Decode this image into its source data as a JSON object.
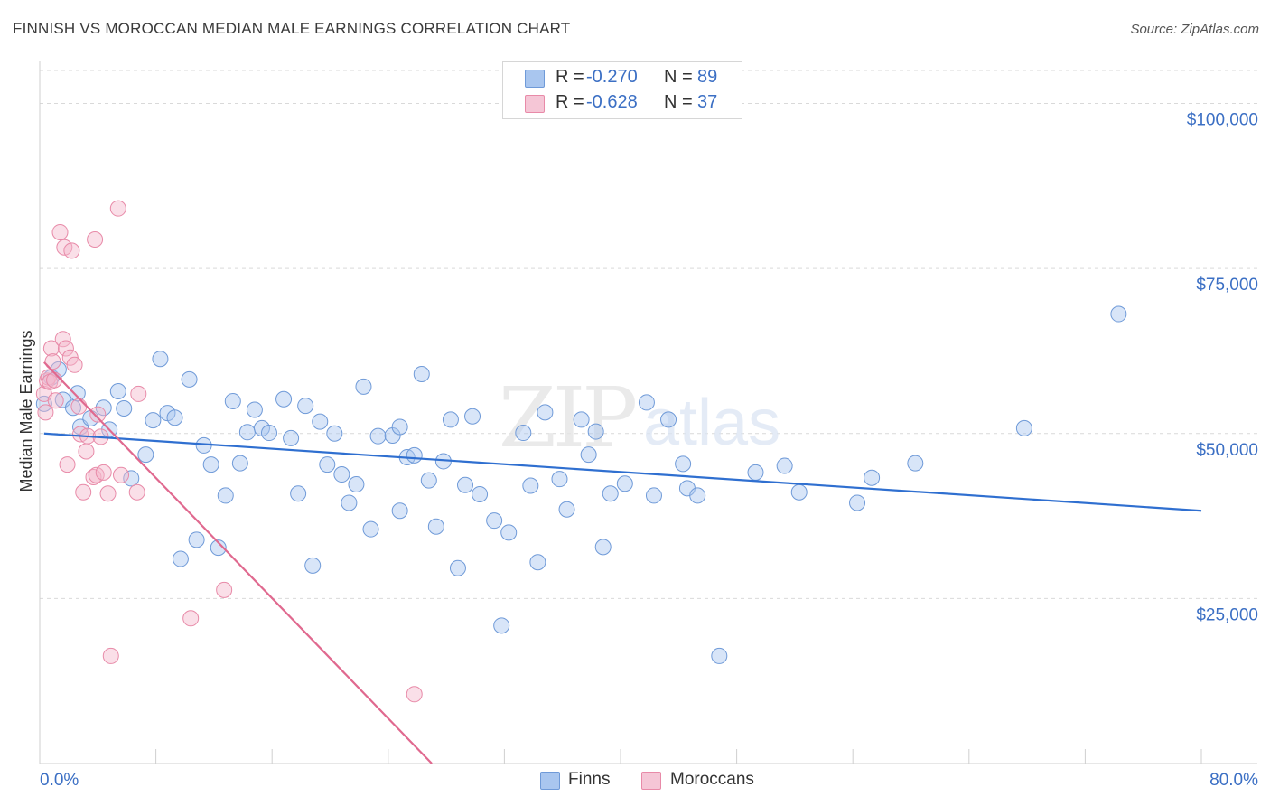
{
  "title": "FINNISH VS MOROCCAN MEDIAN MALE EARNINGS CORRELATION CHART",
  "source": "Source: ZipAtlas.com",
  "watermark": {
    "zip": "ZIP",
    "atlas": "atlas"
  },
  "colors": {
    "finns_fill": "#a9c6ef",
    "finns_stroke": "#6f9ad8",
    "finns_line": "#2f6fd0",
    "moroccans_fill": "#f5b8cc",
    "moroccans_stroke": "#e88aa8",
    "moroccans_line": "#e0698f",
    "tick_label": "#3b6fc4",
    "grid": "#d9d9d9"
  },
  "legend_top": {
    "rows": [
      {
        "r_label": "R =",
        "r_value": "-0.270",
        "n_label": "N =",
        "n_value": "89"
      },
      {
        "r_label": "R =",
        "r_value": "-0.628",
        "n_label": "N =",
        "n_value": "37"
      }
    ]
  },
  "legend_bottom": {
    "finns": "Finns",
    "moroccans": "Moroccans"
  },
  "chart_data": {
    "type": "scatter",
    "title": "FINNISH VS MOROCCAN MEDIAN MALE EARNINGS CORRELATION CHART",
    "xlabel": "",
    "ylabel": "Median Male Earnings",
    "xlim": [
      0,
      80
    ],
    "ylim": [
      0,
      105000
    ],
    "x_tick_labels": [
      "0.0%",
      "80.0%"
    ],
    "y_ticks": [
      25000,
      50000,
      75000,
      100000
    ],
    "y_tick_labels": [
      "$25,000",
      "$50,000",
      "$75,000",
      "$100,000"
    ],
    "series": [
      {
        "name": "Finns",
        "r": -0.27,
        "n": 89,
        "trend": {
          "x": [
            0.3,
            80
          ],
          "y": [
            50000,
            38300
          ]
        },
        "points": [
          [
            0.3,
            54500
          ],
          [
            0.8,
            58500
          ],
          [
            1.3,
            59700
          ],
          [
            1.6,
            55100
          ],
          [
            2.3,
            53900
          ],
          [
            2.6,
            56100
          ],
          [
            2.8,
            51000
          ],
          [
            3.5,
            52300
          ],
          [
            4.4,
            53900
          ],
          [
            4.8,
            50600
          ],
          [
            5.4,
            56400
          ],
          [
            5.8,
            53800
          ],
          [
            6.3,
            43200
          ],
          [
            7.3,
            46800
          ],
          [
            7.8,
            52000
          ],
          [
            8.3,
            61300
          ],
          [
            8.8,
            53100
          ],
          [
            9.3,
            52400
          ],
          [
            9.7,
            31000
          ],
          [
            10.3,
            58200
          ],
          [
            10.8,
            33900
          ],
          [
            11.3,
            48200
          ],
          [
            11.8,
            45300
          ],
          [
            12.3,
            32700
          ],
          [
            12.8,
            40600
          ],
          [
            13.3,
            54900
          ],
          [
            13.8,
            45500
          ],
          [
            14.3,
            50200
          ],
          [
            14.8,
            53600
          ],
          [
            15.3,
            50800
          ],
          [
            15.8,
            50100
          ],
          [
            16.8,
            55200
          ],
          [
            17.3,
            49300
          ],
          [
            17.8,
            40900
          ],
          [
            18.3,
            54200
          ],
          [
            18.8,
            30000
          ],
          [
            19.3,
            51800
          ],
          [
            19.8,
            45300
          ],
          [
            20.3,
            50000
          ],
          [
            20.8,
            43800
          ],
          [
            21.3,
            39500
          ],
          [
            21.8,
            42300
          ],
          [
            22.3,
            57100
          ],
          [
            22.8,
            35500
          ],
          [
            23.3,
            49600
          ],
          [
            24.3,
            49700
          ],
          [
            24.8,
            38300
          ],
          [
            25.3,
            46400
          ],
          [
            25.8,
            46700
          ],
          [
            26.3,
            59000
          ],
          [
            26.8,
            42900
          ],
          [
            27.3,
            35900
          ],
          [
            27.8,
            45800
          ],
          [
            28.3,
            52100
          ],
          [
            28.8,
            29600
          ],
          [
            29.3,
            42200
          ],
          [
            29.8,
            52600
          ],
          [
            30.3,
            40800
          ],
          [
            31.3,
            36800
          ],
          [
            31.8,
            20900
          ],
          [
            32.3,
            35000
          ],
          [
            33.3,
            50100
          ],
          [
            33.8,
            42100
          ],
          [
            34.3,
            30500
          ],
          [
            34.8,
            53200
          ],
          [
            35.8,
            43100
          ],
          [
            36.3,
            38500
          ],
          [
            37.3,
            52100
          ],
          [
            37.8,
            46800
          ],
          [
            38.3,
            50300
          ],
          [
            38.8,
            32800
          ],
          [
            39.3,
            40900
          ],
          [
            40.3,
            42400
          ],
          [
            41.8,
            54700
          ],
          [
            42.3,
            40600
          ],
          [
            43.3,
            52100
          ],
          [
            44.3,
            45400
          ],
          [
            44.6,
            41700
          ],
          [
            45.3,
            40600
          ],
          [
            46.8,
            16300
          ],
          [
            49.3,
            44100
          ],
          [
            51.3,
            45100
          ],
          [
            52.3,
            41100
          ],
          [
            56.3,
            39500
          ],
          [
            57.3,
            43300
          ],
          [
            60.3,
            45500
          ],
          [
            67.8,
            50800
          ],
          [
            74.3,
            68100
          ],
          [
            24.8,
            51000
          ]
        ]
      },
      {
        "name": "Moroccans",
        "r": -0.628,
        "n": 37,
        "trend": {
          "x": [
            0.3,
            27
          ],
          "y": [
            60800,
            0
          ]
        },
        "points": [
          [
            0.3,
            56000
          ],
          [
            0.4,
            53200
          ],
          [
            0.5,
            58000
          ],
          [
            0.6,
            58500
          ],
          [
            0.7,
            57800
          ],
          [
            0.8,
            62900
          ],
          [
            0.9,
            60900
          ],
          [
            1.0,
            58100
          ],
          [
            1.1,
            55000
          ],
          [
            1.4,
            80500
          ],
          [
            1.6,
            64300
          ],
          [
            1.7,
            78200
          ],
          [
            1.8,
            62900
          ],
          [
            1.9,
            45300
          ],
          [
            2.1,
            61500
          ],
          [
            2.2,
            77700
          ],
          [
            2.4,
            60400
          ],
          [
            2.7,
            54100
          ],
          [
            2.8,
            49900
          ],
          [
            3.0,
            41100
          ],
          [
            3.2,
            47300
          ],
          [
            3.3,
            49600
          ],
          [
            3.7,
            43400
          ],
          [
            3.8,
            79400
          ],
          [
            3.9,
            43700
          ],
          [
            4.0,
            52900
          ],
          [
            4.2,
            49500
          ],
          [
            4.4,
            44100
          ],
          [
            4.7,
            40900
          ],
          [
            4.9,
            16300
          ],
          [
            5.4,
            84100
          ],
          [
            5.6,
            43700
          ],
          [
            6.7,
            41100
          ],
          [
            6.8,
            56000
          ],
          [
            10.4,
            22000
          ],
          [
            12.7,
            26300
          ],
          [
            25.8,
            10500
          ]
        ]
      }
    ]
  }
}
